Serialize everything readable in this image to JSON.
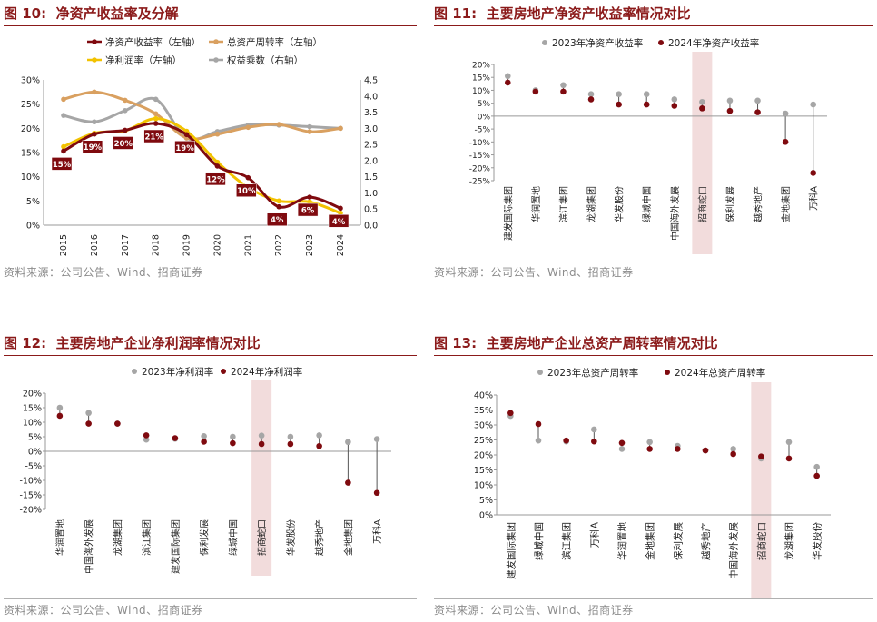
{
  "colors": {
    "title": "#8b1a1a",
    "dark_red": "#7f0a0f",
    "gray": "#a6a6a6",
    "tan": "#d9a060",
    "yellow": "#f2c200",
    "highlight": "#f2dcdc",
    "source": "#8c8c8c"
  },
  "source_text": "资料来源：公司公告、Wind、招商证券",
  "panels": [
    {
      "label": "图 10:",
      "title": "净资产收益率及分解"
    },
    {
      "label": "图 11:",
      "title": "主要房地产净资产收益率情况对比"
    },
    {
      "label": "图 12:",
      "title": "主要房地产企业净利润率情况对比"
    },
    {
      "label": "图 13:",
      "title": "主要房地产企业总资产周转率情况对比"
    }
  ],
  "chart_data": [
    {
      "type": "line",
      "id": "fig10",
      "x": [
        "2015",
        "2016",
        "2017",
        "2018",
        "2019",
        "2020",
        "2021",
        "2022",
        "2023",
        "2024"
      ],
      "left_axis": {
        "ticks": [
          "0%",
          "5%",
          "10%",
          "15%",
          "20%",
          "25%",
          "30%"
        ],
        "ylim": [
          0,
          30
        ]
      },
      "right_axis": {
        "ticks": [
          "0.0",
          "0.5",
          "1.0",
          "1.5",
          "2.0",
          "2.5",
          "3.0",
          "3.5",
          "4.0",
          "4.5"
        ],
        "ylim": [
          0,
          4.5
        ]
      },
      "series": [
        {
          "name": "净资产收益率（左轴）",
          "axis": "left",
          "color": "#7f0a0f",
          "values": [
            15.3,
            18.8,
            19.6,
            21.0,
            18.7,
            12.2,
            9.8,
            3.8,
            5.8,
            3.5
          ],
          "labels": [
            "15%",
            "19%",
            "20%",
            "21%",
            "19%",
            "12%",
            "10%",
            "4%",
            "6%",
            "4%"
          ]
        },
        {
          "name": "总资产周转率（左轴）",
          "axis": "left",
          "color": "#d9a060",
          "values": [
            26.0,
            27.5,
            25.8,
            23.0,
            18.0,
            18.8,
            20.2,
            20.8,
            19.3,
            20.0
          ]
        },
        {
          "name": "净利润率（左轴）",
          "axis": "left",
          "color": "#f2c200",
          "values": [
            16.2,
            19.0,
            19.5,
            22.0,
            19.4,
            13.0,
            7.8,
            5.0,
            4.8,
            2.5
          ]
        },
        {
          "name": "权益乘数（右轴）",
          "axis": "right",
          "color": "#a6a6a6",
          "values": [
            3.4,
            3.2,
            3.55,
            3.9,
            2.7,
            2.9,
            3.1,
            3.1,
            3.05,
            3.0
          ]
        }
      ]
    },
    {
      "type": "dumbbell",
      "id": "fig11",
      "legend": [
        "2023年净资产收益率",
        "2024年净资产收益率"
      ],
      "categories": [
        "建发国际集团",
        "华润置地",
        "滨江集团",
        "龙湖集团",
        "华发股份",
        "绿城中国",
        "中国海外发展",
        "招商蛇口",
        "保利发展",
        "越秀地产",
        "金地集团",
        "万科A"
      ],
      "series": [
        {
          "name": "2023年净资产收益率",
          "values": [
            15.5,
            10.0,
            12.0,
            8.5,
            8.5,
            8.5,
            6.5,
            5.5,
            6.0,
            6.0,
            1.0,
            4.5
          ]
        },
        {
          "name": "2024年净资产收益率",
          "values": [
            13.0,
            9.5,
            9.5,
            6.5,
            4.5,
            4.5,
            4.0,
            3.0,
            2.0,
            1.5,
            -10.0,
            -22.0
          ]
        }
      ],
      "highlight": "招商蛇口",
      "yticks": [
        "20%",
        "15%",
        "10%",
        "5%",
        "0%",
        "-5%",
        "-10%",
        "-15%",
        "-20%",
        "-25%"
      ],
      "ylim": [
        -25,
        20
      ]
    },
    {
      "type": "dumbbell",
      "id": "fig12",
      "legend": [
        "2023年净利润率",
        "2024年净利润率"
      ],
      "categories": [
        "华润置地",
        "中国海外发展",
        "龙湖集团",
        "滨江集团",
        "建发国际集团",
        "保利发展",
        "绿城中国",
        "招商蛇口",
        "华发股份",
        "越秀地产",
        "金地集团",
        "万科A"
      ],
      "series": [
        {
          "name": "2023年净利润率",
          "values": [
            15.0,
            13.2,
            9.5,
            4.0,
            4.3,
            5.2,
            5.0,
            5.4,
            5.0,
            5.5,
            3.2,
            4.2
          ]
        },
        {
          "name": "2024年净利润率",
          "values": [
            12.2,
            9.5,
            9.5,
            5.5,
            4.5,
            3.3,
            2.8,
            2.5,
            2.5,
            1.8,
            -10.8,
            -14.3
          ]
        }
      ],
      "highlight": "招商蛇口",
      "yticks": [
        "20%",
        "15%",
        "10%",
        "5%",
        "0%",
        "-5%",
        "-10%",
        "-15%",
        "-20%"
      ],
      "ylim": [
        -20,
        20
      ]
    },
    {
      "type": "dumbbell",
      "id": "fig13",
      "legend": [
        "2023年总资产周转率",
        "2024年总资产周转率"
      ],
      "categories": [
        "建发国际集团",
        "绿城中国",
        "滨江集团",
        "万科A",
        "华润置地",
        "金地集团",
        "保利发展",
        "越秀地产",
        "中国海外发展",
        "招商蛇口",
        "龙湖集团",
        "华发股份"
      ],
      "series": [
        {
          "name": "2023年总资产周转率",
          "values": [
            33.0,
            24.8,
            24.5,
            28.5,
            22.0,
            24.3,
            23.0,
            21.5,
            22.0,
            18.8,
            24.3,
            16.0
          ]
        },
        {
          "name": "2024年总资产周转率",
          "values": [
            34.0,
            30.3,
            24.8,
            24.5,
            24.0,
            22.0,
            22.0,
            21.5,
            20.3,
            19.5,
            18.8,
            13.0
          ]
        }
      ],
      "highlight": "招商蛇口",
      "yticks": [
        "40%",
        "35%",
        "30%",
        "25%",
        "20%",
        "15%",
        "10%",
        "5%",
        "0%"
      ],
      "ylim": [
        0,
        40
      ]
    }
  ]
}
